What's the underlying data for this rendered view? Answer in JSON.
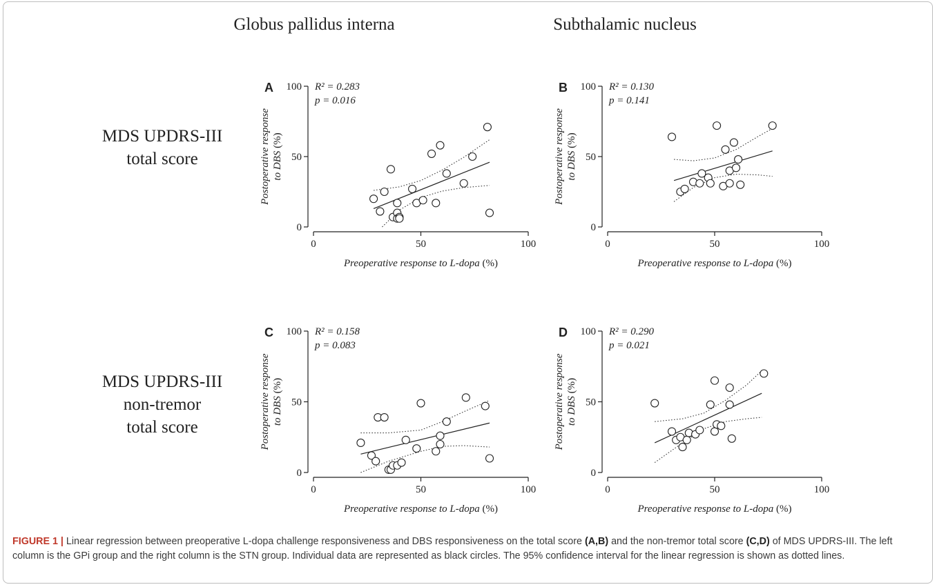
{
  "column_headers": [
    "Globus pallidus interna",
    "Subthalamic nucleus"
  ],
  "row_labels": [
    [
      "MDS UPDRS-III",
      "total score"
    ],
    [
      "MDS UPDRS-III",
      "non-tremor",
      "total score"
    ]
  ],
  "caption": {
    "label": "FIGURE 1 |",
    "p1": " Linear regression between preoperative L-dopa challenge responsiveness and DBS responsiveness on the total score ",
    "b1": "(A,B)",
    "p2": " and the non-tremor total score ",
    "b2": "(C,D)",
    "p3": " of MDS UPDRS-III. The left column is the GPi group and the right column is the STN group. Individual data are represented as black circles. The 95% confidence interval for the linear regression is shown as dotted lines."
  },
  "chart_data": [
    {
      "type": "scatter",
      "panel": "A",
      "xlabel": {
        "italic": "Preoperative response to L-dopa",
        "unit": " (%)"
      },
      "ylabel": {
        "italic_line1": "Postoperative response",
        "italic_line2": "to DBS",
        "unit": " (%)"
      },
      "xlim": [
        0,
        100
      ],
      "ylim": [
        0,
        100
      ],
      "xticks": [
        "0",
        "50",
        "100"
      ],
      "yticks": [
        "0",
        "50",
        "100"
      ],
      "stats": {
        "r2": "R² = 0.283",
        "p": "p = 0.016"
      },
      "points": [
        [
          28,
          20
        ],
        [
          31,
          11
        ],
        [
          33,
          25
        ],
        [
          36,
          41
        ],
        [
          37,
          7
        ],
        [
          39,
          17
        ],
        [
          39,
          10
        ],
        [
          39,
          6
        ],
        [
          40,
          7
        ],
        [
          40,
          6
        ],
        [
          46,
          27
        ],
        [
          48,
          17
        ],
        [
          51,
          19
        ],
        [
          55,
          52
        ],
        [
          57,
          17
        ],
        [
          59,
          58
        ],
        [
          62,
          38
        ],
        [
          70,
          31
        ],
        [
          74,
          50
        ],
        [
          81,
          71
        ],
        [
          82,
          10
        ]
      ],
      "fit": {
        "x": [
          28,
          82
        ],
        "y": [
          13,
          46
        ]
      },
      "ci_upper": {
        "x": [
          28,
          40,
          50,
          60,
          70,
          82
        ],
        "y": [
          26,
          28.5,
          33,
          40.5,
          49.5,
          62
        ]
      },
      "ci_lower": {
        "x": [
          32,
          40,
          50,
          60,
          70,
          82
        ],
        "y": [
          0,
          12,
          21,
          25.5,
          28,
          29.5
        ]
      }
    },
    {
      "type": "scatter",
      "panel": "B",
      "xlabel": {
        "italic": "Preoperative response to L-dopa",
        "unit": " (%)"
      },
      "ylabel": {
        "italic_line1": "Postoperative response",
        "italic_line2": "to DBS",
        "unit": " (%)"
      },
      "xlim": [
        0,
        100
      ],
      "ylim": [
        0,
        100
      ],
      "xticks": [
        "0",
        "50",
        "100"
      ],
      "yticks": [
        "0",
        "50",
        "100"
      ],
      "stats": {
        "r2": "R² = 0.130",
        "p": "p = 0.141"
      },
      "points": [
        [
          30,
          64
        ],
        [
          34,
          25
        ],
        [
          36,
          27
        ],
        [
          40,
          32
        ],
        [
          43,
          31
        ],
        [
          44,
          38
        ],
        [
          47,
          35
        ],
        [
          48,
          31
        ],
        [
          51,
          72
        ],
        [
          54,
          29
        ],
        [
          55,
          55
        ],
        [
          57,
          31
        ],
        [
          57,
          40
        ],
        [
          59,
          60
        ],
        [
          60,
          42
        ],
        [
          61,
          48
        ],
        [
          62,
          30
        ],
        [
          77,
          72
        ]
      ],
      "fit": {
        "x": [
          31,
          77
        ],
        "y": [
          33,
          54
        ]
      },
      "ci_upper": {
        "x": [
          31,
          40,
          50,
          60,
          70,
          77
        ],
        "y": [
          48,
          47,
          49,
          55,
          64,
          70
        ]
      },
      "ci_lower": {
        "x": [
          31,
          40,
          50,
          60,
          70,
          77
        ],
        "y": [
          18,
          28,
          35,
          37.5,
          37,
          36
        ]
      }
    },
    {
      "type": "scatter",
      "panel": "C",
      "xlabel": {
        "italic": "Preoperative response to L-dopa",
        "unit": " (%)"
      },
      "ylabel": {
        "italic_line1": "Postoperative response",
        "italic_line2": "to DBS",
        "unit": " (%)"
      },
      "xlim": [
        0,
        100
      ],
      "ylim": [
        0,
        100
      ],
      "xticks": [
        "0",
        "50",
        "100"
      ],
      "yticks": [
        "0",
        "50",
        "100"
      ],
      "stats": {
        "r2": "R² = 0.158",
        "p": "p = 0.083"
      },
      "points": [
        [
          22,
          21
        ],
        [
          27,
          12
        ],
        [
          29,
          8
        ],
        [
          30,
          39
        ],
        [
          33,
          39
        ],
        [
          35,
          2
        ],
        [
          36,
          2
        ],
        [
          37,
          5
        ],
        [
          39,
          5
        ],
        [
          41,
          7
        ],
        [
          43,
          23
        ],
        [
          48,
          17
        ],
        [
          50,
          49
        ],
        [
          57,
          15
        ],
        [
          59,
          26
        ],
        [
          59,
          20
        ],
        [
          62,
          36
        ],
        [
          71,
          53
        ],
        [
          80,
          47
        ],
        [
          82,
          10
        ]
      ],
      "fit": {
        "x": [
          22,
          82
        ],
        "y": [
          13,
          35
        ]
      },
      "ci_upper": {
        "x": [
          22,
          35,
          50,
          60,
          70,
          82
        ],
        "y": [
          28,
          28,
          30,
          36,
          43,
          51
        ]
      },
      "ci_lower": {
        "x": [
          22,
          35,
          50,
          60,
          70,
          82
        ],
        "y": [
          -1,
          8,
          15,
          18.5,
          19,
          18
        ]
      }
    },
    {
      "type": "scatter",
      "panel": "D",
      "xlabel": {
        "italic": "Preoperative response to L-dopa",
        "unit": " (%)"
      },
      "ylabel": {
        "italic_line1": "Postoperative response",
        "italic_line2": "to DBS",
        "unit": " (%)"
      },
      "xlim": [
        0,
        100
      ],
      "ylim": [
        0,
        100
      ],
      "xticks": [
        "0",
        "50",
        "100"
      ],
      "yticks": [
        "0",
        "50",
        "100"
      ],
      "stats": {
        "r2": "R² = 0.290",
        "p": "p = 0.021"
      },
      "points": [
        [
          22,
          49
        ],
        [
          30,
          29
        ],
        [
          32,
          23
        ],
        [
          34,
          25
        ],
        [
          35,
          18
        ],
        [
          37,
          23
        ],
        [
          38,
          28
        ],
        [
          41,
          27
        ],
        [
          43,
          30
        ],
        [
          48,
          48
        ],
        [
          50,
          65
        ],
        [
          50,
          29
        ],
        [
          51,
          34
        ],
        [
          53,
          33
        ],
        [
          57,
          60
        ],
        [
          57,
          48
        ],
        [
          58,
          24
        ],
        [
          73,
          70
        ]
      ],
      "fit": {
        "x": [
          22,
          72
        ],
        "y": [
          21,
          56
        ]
      },
      "ci_upper": {
        "x": [
          22,
          35,
          45,
          55,
          65,
          72
        ],
        "y": [
          36,
          38,
          42,
          51,
          62,
          72
        ]
      },
      "ci_lower": {
        "x": [
          22,
          35,
          45,
          55,
          65,
          72
        ],
        "y": [
          7,
          21,
          31,
          36,
          38,
          39
        ]
      }
    }
  ]
}
